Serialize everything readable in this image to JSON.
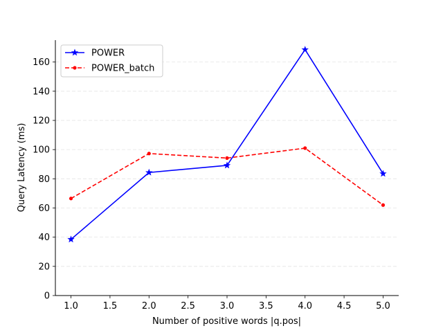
{
  "chart_data": {
    "type": "line",
    "title": "",
    "xlabel": "Number of positive words |q.pos|",
    "ylabel": "Query Latency (ms)",
    "x": [
      1.0,
      2.0,
      3.0,
      4.0,
      5.0
    ],
    "xlim": [
      0.8,
      5.2
    ],
    "ylim": [
      0,
      175
    ],
    "xticks": [
      1.0,
      1.5,
      2.0,
      2.5,
      3.0,
      3.5,
      4.0,
      4.5,
      5.0
    ],
    "xtick_labels": [
      "1.0",
      "1.5",
      "2.0",
      "2.5",
      "3.0",
      "3.5",
      "4.0",
      "4.5",
      "5.0"
    ],
    "yticks": [
      0,
      20,
      40,
      60,
      80,
      100,
      120,
      140,
      160
    ],
    "ytick_labels": [
      "0",
      "20",
      "40",
      "60",
      "80",
      "100",
      "120",
      "140",
      "160"
    ],
    "grid": "y-dashed",
    "legend_position": "upper-left",
    "series": [
      {
        "name": "POWER",
        "values": [
          38.5,
          84.3,
          89.2,
          168.5,
          83.5
        ],
        "color": "#0000ff",
        "line_style": "solid",
        "marker": "star"
      },
      {
        "name": "POWER_batch",
        "values": [
          66.5,
          97.3,
          94.2,
          101.0,
          62.0
        ],
        "color": "#ff0000",
        "line_style": "dashed",
        "marker": "dot"
      }
    ]
  }
}
